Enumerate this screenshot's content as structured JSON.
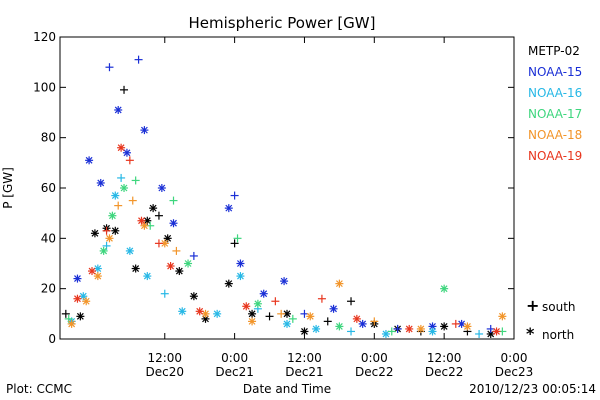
{
  "chart_data": {
    "type": "scatter",
    "title": "Hemispheric Power [GW]",
    "xlabel": "Date and Time",
    "ylabel": "P [GW]",
    "ylim": [
      0,
      120
    ],
    "yticks": [
      0,
      20,
      40,
      60,
      80,
      100,
      120
    ],
    "xlim": [
      "2010-12-19 18:00",
      "2010-12-23 00:00"
    ],
    "xticks": [
      {
        "t": "2010-12-20 12:00",
        "top": "12:00",
        "bottom": "Dec20"
      },
      {
        "t": "2010-12-21 00:00",
        "top": "0:00",
        "bottom": "Dec21"
      },
      {
        "t": "2010-12-21 12:00",
        "top": "12:00",
        "bottom": "Dec21"
      },
      {
        "t": "2010-12-22 00:00",
        "top": "0:00",
        "bottom": "Dec22"
      },
      {
        "t": "2010-12-22 12:00",
        "top": "12:00",
        "bottom": "Dec22"
      },
      {
        "t": "2010-12-23 00:00",
        "top": "0:00",
        "bottom": "Dec23"
      }
    ],
    "grid": false,
    "legend_position": "right",
    "hemisphere_markers": [
      {
        "symbol": "+",
        "label": "south"
      },
      {
        "symbol": "*",
        "label": "north"
      }
    ],
    "series": [
      {
        "name": "METP-02",
        "color": "#000000",
        "points": [
          [
            "2010-12-19 19:00",
            10,
            "+"
          ],
          [
            "2010-12-19 21:30",
            9,
            "*"
          ],
          [
            "2010-12-20 00:00",
            42,
            "*"
          ],
          [
            "2010-12-20 02:00",
            44,
            "*"
          ],
          [
            "2010-12-20 03:30",
            43,
            "*"
          ],
          [
            "2010-12-20 05:00",
            99,
            "+"
          ],
          [
            "2010-12-20 07:00",
            28,
            "*"
          ],
          [
            "2010-12-20 09:00",
            47,
            "*"
          ],
          [
            "2010-12-20 10:00",
            52,
            "*"
          ],
          [
            "2010-12-20 11:00",
            49,
            "+"
          ],
          [
            "2010-12-20 12:30",
            40,
            "*"
          ],
          [
            "2010-12-20 14:30",
            27,
            "*"
          ],
          [
            "2010-12-20 17:00",
            17,
            "*"
          ],
          [
            "2010-12-20 19:00",
            8,
            "*"
          ],
          [
            "2010-12-20 23:00",
            22,
            "*"
          ],
          [
            "2010-12-21 00:00",
            38,
            "+"
          ],
          [
            "2010-12-21 03:00",
            10,
            "*"
          ],
          [
            "2010-12-21 06:00",
            9,
            "+"
          ],
          [
            "2010-12-21 09:00",
            10,
            "*"
          ],
          [
            "2010-12-21 12:00",
            3,
            "*"
          ],
          [
            "2010-12-21 16:00",
            7,
            "+"
          ],
          [
            "2010-12-21 20:00",
            15,
            "+"
          ],
          [
            "2010-12-22 00:00",
            6,
            "*"
          ],
          [
            "2010-12-22 04:00",
            4,
            "*"
          ],
          [
            "2010-12-22 08:00",
            3,
            "+"
          ],
          [
            "2010-12-22 12:00",
            5,
            "*"
          ],
          [
            "2010-12-22 16:00",
            3,
            "+"
          ],
          [
            "2010-12-22 20:00",
            2,
            "*"
          ]
        ]
      },
      {
        "name": "NOAA-15",
        "color": "#1a2fd6",
        "points": [
          [
            "2010-12-19 21:00",
            24,
            "*"
          ],
          [
            "2010-12-19 23:00",
            71,
            "*"
          ],
          [
            "2010-12-20 01:00",
            62,
            "*"
          ],
          [
            "2010-12-20 02:30",
            108,
            "+"
          ],
          [
            "2010-12-20 04:00",
            91,
            "*"
          ],
          [
            "2010-12-20 05:30",
            74,
            "*"
          ],
          [
            "2010-12-20 07:30",
            111,
            "+"
          ],
          [
            "2010-12-20 08:30",
            83,
            "*"
          ],
          [
            "2010-12-20 11:30",
            60,
            "*"
          ],
          [
            "2010-12-20 13:30",
            46,
            "*"
          ],
          [
            "2010-12-20 17:00",
            33,
            "+"
          ],
          [
            "2010-12-20 23:00",
            52,
            "*"
          ],
          [
            "2010-12-21 00:00",
            57,
            "+"
          ],
          [
            "2010-12-21 01:00",
            30,
            "*"
          ],
          [
            "2010-12-21 05:00",
            18,
            "*"
          ],
          [
            "2010-12-21 08:30",
            23,
            "*"
          ],
          [
            "2010-12-21 12:00",
            10,
            "+"
          ],
          [
            "2010-12-21 17:00",
            12,
            "*"
          ],
          [
            "2010-12-21 22:00",
            6,
            "*"
          ],
          [
            "2010-12-22 04:00",
            4,
            "+"
          ],
          [
            "2010-12-22 10:00",
            5,
            "*"
          ],
          [
            "2010-12-22 15:00",
            6,
            "*"
          ],
          [
            "2010-12-22 20:00",
            4,
            "+"
          ]
        ]
      },
      {
        "name": "NOAA-16",
        "color": "#27b8e6",
        "points": [
          [
            "2010-12-19 20:00",
            7,
            "*"
          ],
          [
            "2010-12-19 22:00",
            17,
            "*"
          ],
          [
            "2010-12-20 00:30",
            28,
            "*"
          ],
          [
            "2010-12-20 02:00",
            37,
            "+"
          ],
          [
            "2010-12-20 03:30",
            57,
            "*"
          ],
          [
            "2010-12-20 04:30",
            64,
            "+"
          ],
          [
            "2010-12-20 06:00",
            35,
            "*"
          ],
          [
            "2010-12-20 09:00",
            25,
            "*"
          ],
          [
            "2010-12-20 12:00",
            18,
            "+"
          ],
          [
            "2010-12-20 15:00",
            11,
            "*"
          ],
          [
            "2010-12-20 21:00",
            10,
            "*"
          ],
          [
            "2010-12-21 01:00",
            25,
            "*"
          ],
          [
            "2010-12-21 04:00",
            12,
            "+"
          ],
          [
            "2010-12-21 09:00",
            6,
            "*"
          ],
          [
            "2010-12-21 14:00",
            4,
            "*"
          ],
          [
            "2010-12-21 20:00",
            3,
            "+"
          ],
          [
            "2010-12-22 02:00",
            2,
            "*"
          ],
          [
            "2010-12-22 10:00",
            3,
            "*"
          ],
          [
            "2010-12-22 18:00",
            2,
            "+"
          ]
        ]
      },
      {
        "name": "NOAA-17",
        "color": "#3ed67e",
        "points": [
          [
            "2010-12-19 19:30",
            8,
            "+"
          ],
          [
            "2010-12-20 01:30",
            35,
            "*"
          ],
          [
            "2010-12-20 03:00",
            49,
            "*"
          ],
          [
            "2010-12-20 05:00",
            60,
            "*"
          ],
          [
            "2010-12-20 07:00",
            63,
            "+"
          ],
          [
            "2010-12-20 09:30",
            45,
            "+"
          ],
          [
            "2010-12-20 13:30",
            55,
            "+"
          ],
          [
            "2010-12-20 16:00",
            30,
            "*"
          ],
          [
            "2010-12-21 00:30",
            40,
            "+"
          ],
          [
            "2010-12-21 04:00",
            14,
            "*"
          ],
          [
            "2010-12-21 10:00",
            8,
            "+"
          ],
          [
            "2010-12-21 18:00",
            5,
            "*"
          ],
          [
            "2010-12-22 03:00",
            3,
            "+"
          ],
          [
            "2010-12-22 12:00",
            20,
            "*"
          ],
          [
            "2010-12-22 22:00",
            3,
            "+"
          ]
        ]
      },
      {
        "name": "NOAA-18",
        "color": "#f2952a",
        "points": [
          [
            "2010-12-19 20:00",
            6,
            "*"
          ],
          [
            "2010-12-19 22:30",
            15,
            "*"
          ],
          [
            "2010-12-20 00:30",
            25,
            "*"
          ],
          [
            "2010-12-20 02:30",
            40,
            "*"
          ],
          [
            "2010-12-20 04:00",
            53,
            "+"
          ],
          [
            "2010-12-20 06:30",
            55,
            "+"
          ],
          [
            "2010-12-20 08:30",
            45,
            "*"
          ],
          [
            "2010-12-20 12:00",
            38,
            "*"
          ],
          [
            "2010-12-20 14:00",
            35,
            "+"
          ],
          [
            "2010-12-20 19:00",
            10,
            "*"
          ],
          [
            "2010-12-21 03:00",
            7,
            "*"
          ],
          [
            "2010-12-21 08:00",
            10,
            "+"
          ],
          [
            "2010-12-21 13:00",
            9,
            "*"
          ],
          [
            "2010-12-21 18:00",
            22,
            "*"
          ],
          [
            "2010-12-22 00:00",
            7,
            "+"
          ],
          [
            "2010-12-22 08:00",
            4,
            "*"
          ],
          [
            "2010-12-22 16:00",
            5,
            "*"
          ],
          [
            "2010-12-22 22:00",
            9,
            "*"
          ]
        ]
      },
      {
        "name": "NOAA-19",
        "color": "#e8361e",
        "points": [
          [
            "2010-12-19 21:00",
            16,
            "*"
          ],
          [
            "2010-12-19 23:30",
            27,
            "*"
          ],
          [
            "2010-12-20 02:00",
            43,
            "+"
          ],
          [
            "2010-12-20 04:30",
            76,
            "*"
          ],
          [
            "2010-12-20 06:00",
            71,
            "+"
          ],
          [
            "2010-12-20 08:00",
            47,
            "*"
          ],
          [
            "2010-12-20 11:00",
            38,
            "+"
          ],
          [
            "2010-12-20 13:00",
            29,
            "*"
          ],
          [
            "2010-12-20 18:00",
            11,
            "*"
          ],
          [
            "2010-12-21 02:00",
            13,
            "*"
          ],
          [
            "2010-12-21 07:00",
            15,
            "+"
          ],
          [
            "2010-12-21 15:00",
            16,
            "+"
          ],
          [
            "2010-12-21 21:00",
            8,
            "*"
          ],
          [
            "2010-12-22 06:00",
            4,
            "*"
          ],
          [
            "2010-12-22 14:00",
            6,
            "+"
          ],
          [
            "2010-12-22 21:00",
            3,
            "*"
          ]
        ]
      }
    ]
  },
  "footer": {
    "left": "Plot: CCMC",
    "right": "2010/12/23 00:05:14"
  }
}
